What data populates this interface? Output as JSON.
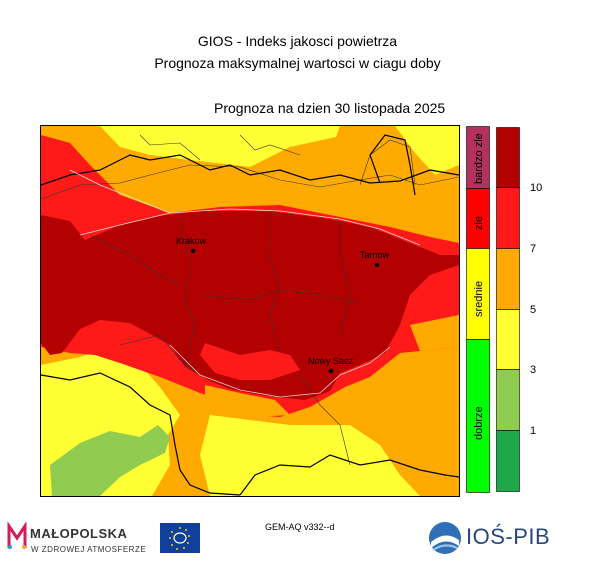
{
  "header": {
    "line1": "GIOS - Indeks jakosci powietrza",
    "line2": "Prognoza maksymalnej wartosci w ciagu doby",
    "date": "Prognoza na dzien  30 listopada 2025"
  },
  "cities": [
    {
      "name": "Krakow"
    },
    {
      "name": "Tarnow"
    },
    {
      "name": "Nowy Sacz"
    }
  ],
  "legend": {
    "categories": [
      {
        "label": "bardzo zle",
        "color": "#b2315d"
      },
      {
        "label": "zle",
        "color": "#ff0000"
      },
      {
        "label": "srednie",
        "color": "#ffff00"
      },
      {
        "label": "dobrze",
        "color": "#00ff00"
      }
    ],
    "scale_colors": [
      "#b30000",
      "#ff1a1a",
      "#ffaa00",
      "#ffff33",
      "#90cc50",
      "#1ea84a"
    ],
    "scale_labels": [
      "10",
      "7",
      "5",
      "3",
      "1"
    ]
  },
  "colors": {
    "very_bad": "#b30000",
    "bad": "#ff1a1a",
    "medium": "#ffaa00",
    "moderate": "#ffff33",
    "good": "#90cc50"
  },
  "footer": {
    "model": "GEM-AQ v332--d",
    "malopolska_name": "MAŁOPOLSKA",
    "malopolska_sub": "W ZDROWEJ ATMOSFERZE",
    "ios_name": "IOŚ-PIB",
    "eu_logo": "life-eu-logo"
  }
}
